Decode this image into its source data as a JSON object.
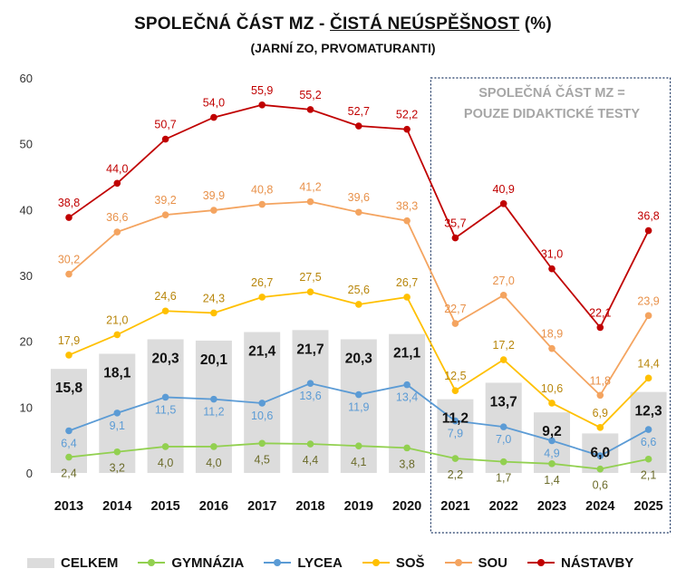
{
  "title": {
    "prefix": "SPOLEČNÁ ČÁST MZ - ",
    "underlined": "ČISTÁ NEÚSPĚŠNOST",
    "suffix": " (%)"
  },
  "subtitle": "(JARNÍ ZO, PRVOMATURANTI)",
  "annotation": {
    "line1": "SPOLEČNÁ ČÁST MZ =",
    "line2": "POUZE DIDAKTICKÉ TESTY"
  },
  "chart_data": {
    "type": "bar+line",
    "categories": [
      "2013",
      "2014",
      "2015",
      "2016",
      "2017",
      "2018",
      "2019",
      "2020",
      "2021",
      "2022",
      "2023",
      "2024",
      "2025"
    ],
    "ylim": [
      0,
      60
    ],
    "yticks": [
      0,
      10,
      20,
      30,
      40,
      50,
      60
    ],
    "grid": false,
    "legend_position": "bottom",
    "highlight_range": [
      "2021",
      "2025"
    ],
    "bar_series": {
      "name": "CELKEM",
      "color": "#dcdcdc",
      "values": [
        15.8,
        18.1,
        20.3,
        20.1,
        21.4,
        21.7,
        20.3,
        21.1,
        11.2,
        13.7,
        9.2,
        6.0,
        12.3
      ],
      "labels": [
        "15,8",
        "18,1",
        "20,3",
        "20,1",
        "21,4",
        "21,7",
        "20,3",
        "21,1",
        "11,2",
        "13,7",
        "9,2",
        "6,0",
        "12,3"
      ]
    },
    "line_series": [
      {
        "name": "GYMNÁZIA",
        "color": "#92d050",
        "label_color": "#6b6b2a",
        "values": [
          2.4,
          3.2,
          4.0,
          4.0,
          4.5,
          4.4,
          4.1,
          3.8,
          2.2,
          1.7,
          1.4,
          0.6,
          2.1
        ],
        "labels": [
          "2,4",
          "3,2",
          "4,0",
          "4,0",
          "4,5",
          "4,4",
          "4,1",
          "3,8",
          "2,2",
          "1,7",
          "1,4",
          "0,6",
          "2,1"
        ]
      },
      {
        "name": "LYCEA",
        "color": "#5b9bd5",
        "label_color": "#5b9bd5",
        "values": [
          6.4,
          9.1,
          11.5,
          11.2,
          10.6,
          13.6,
          11.9,
          13.4,
          7.9,
          7.0,
          4.9,
          2.6,
          6.6
        ],
        "labels": [
          "6,4",
          "9,1",
          "11,5",
          "11,2",
          "10,6",
          "13,6",
          "11,9",
          "13,4",
          "7,9",
          "7,0",
          "4,9",
          "",
          "6,6"
        ]
      },
      {
        "name": "SOŠ",
        "color": "#ffc000",
        "label_color": "#b8860b",
        "values": [
          17.9,
          21.0,
          24.6,
          24.3,
          26.7,
          27.5,
          25.6,
          26.7,
          12.5,
          17.2,
          10.6,
          6.9,
          14.4
        ],
        "labels": [
          "17,9",
          "21,0",
          "24,6",
          "24,3",
          "26,7",
          "27,5",
          "25,6",
          "26,7",
          "12,5",
          "17,2",
          "10,6",
          "6,9",
          "14,4"
        ]
      },
      {
        "name": "SOU",
        "color": "#f4a460",
        "label_color": "#e8914a",
        "values": [
          30.2,
          36.6,
          39.2,
          39.9,
          40.8,
          41.2,
          39.6,
          38.3,
          22.7,
          27.0,
          18.9,
          11.8,
          23.9
        ],
        "labels": [
          "30,2",
          "36,6",
          "39,2",
          "39,9",
          "40,8",
          "41,2",
          "39,6",
          "38,3",
          "22,7",
          "27,0",
          "18,9",
          "11,8",
          "23,9"
        ]
      },
      {
        "name": "NÁSTAVBY",
        "color": "#c00000",
        "label_color": "#c00000",
        "values": [
          38.8,
          44.0,
          50.7,
          54.0,
          55.9,
          55.2,
          52.7,
          52.2,
          35.7,
          40.9,
          31.0,
          22.1,
          36.8
        ],
        "labels": [
          "38,8",
          "44,0",
          "50,7",
          "54,0",
          "55,9",
          "55,2",
          "52,7",
          "52,2",
          "35,7",
          "40,9",
          "31,0",
          "22,1",
          "36,8"
        ]
      }
    ]
  }
}
